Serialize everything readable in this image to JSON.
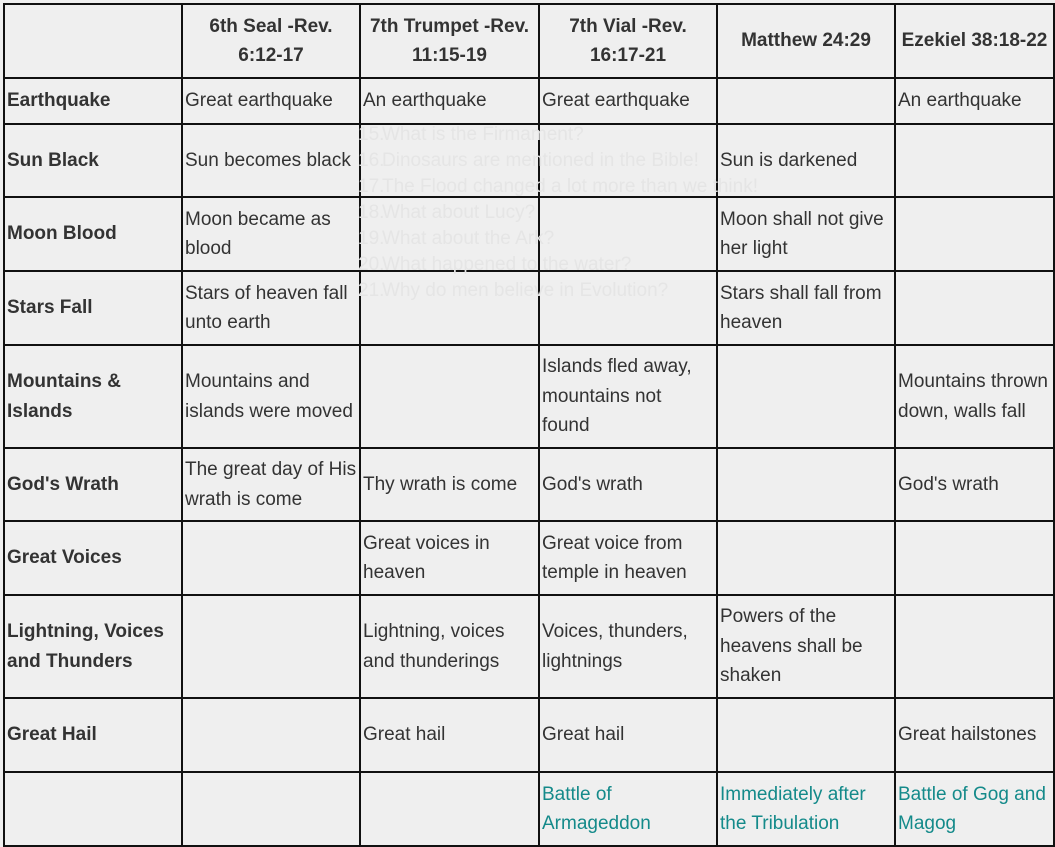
{
  "headers": [
    "",
    "6th Seal -Rev. 6:12-17",
    "7th Trumpet -Rev. 11:15-19",
    "7th Vial -Rev. 16:17-21",
    "Matthew 24:29",
    "Ezekiel 38:18-22"
  ],
  "rows": [
    {
      "label": "Earthquake",
      "cells": [
        "Great earthquake",
        "An earthquake",
        "Great earthquake",
        "",
        "An earthquake"
      ]
    },
    {
      "label": "Sun Black",
      "cells": [
        "Sun becomes black",
        "",
        "",
        "Sun is darkened",
        ""
      ]
    },
    {
      "label": "Moon Blood",
      "cells": [
        "Moon became as blood",
        "",
        "",
        "Moon shall not give her light",
        ""
      ]
    },
    {
      "label": "Stars Fall",
      "cells": [
        "Stars of heaven fall unto earth",
        "",
        "",
        "Stars shall fall from heaven",
        ""
      ]
    },
    {
      "label": "Mountains & Islands",
      "cells": [
        "Mountains and islands were moved",
        "",
        "Islands fled away, mountains not found",
        "",
        "Mountains thrown down, walls fall"
      ]
    },
    {
      "label": "God's Wrath",
      "cells": [
        "The great day of His wrath is come",
        "Thy wrath is come",
        "God's wrath",
        "",
        "God's wrath"
      ]
    },
    {
      "label": "Great Voices",
      "cells": [
        "",
        "Great voices in heaven",
        "Great voice from temple in heaven",
        "",
        ""
      ]
    },
    {
      "label": "Lightning, Voices and Thunders",
      "cells": [
        "",
        "Lightning, voices and thunderings",
        "Voices, thunders, lightnings",
        "Powers of the heavens shall be shaken",
        ""
      ]
    },
    {
      "label": "Great Hail",
      "cells": [
        "",
        "Great hail",
        "Great hail",
        "",
        "Great hailstones"
      ]
    },
    {
      "label": "",
      "cells": [
        "",
        "",
        "Battle of Armageddon",
        "Immediately after the Tribulation",
        "Battle of Gog and Magog"
      ]
    }
  ],
  "footer_row_color": "#148a8a",
  "ghost_list": [
    {
      "num": "15.",
      "text": "What is the Firmament?"
    },
    {
      "num": "16.",
      "text": "Dinosaurs are mentioned in the Bible!"
    },
    {
      "num": "17.",
      "text": "The Flood changed a lot more than we think!"
    },
    {
      "num": "18.",
      "text": "What about Lucy?"
    },
    {
      "num": "19.",
      "text": "What about the Ark?"
    },
    {
      "num": "20.",
      "text": "What happened to the water?"
    },
    {
      "num": "21.",
      "text": "Why do men believe in Evolution?"
    }
  ]
}
